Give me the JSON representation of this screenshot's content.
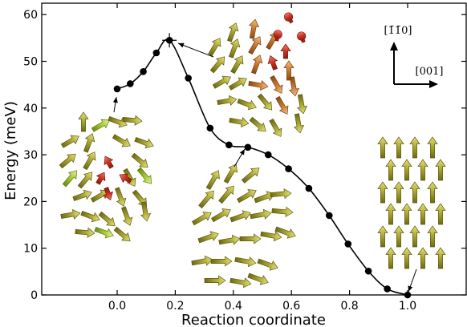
{
  "chart_data": {
    "type": "line",
    "title": "",
    "xlabel": "Reaction coordinate",
    "ylabel": "Energy (meV)",
    "xlim": [
      -0.25,
      1.2
    ],
    "ylim": [
      0,
      63
    ],
    "xticks": [
      0.0,
      0.2,
      0.4,
      0.6,
      0.8,
      1.0
    ],
    "xtick_labels": [
      "0.0",
      "0.2",
      "0.4",
      "0.6",
      "0.8",
      "1.0"
    ],
    "yticks": [
      0,
      10,
      20,
      30,
      40,
      50,
      60
    ],
    "ytick_labels": [
      "0",
      "10",
      "20",
      "30",
      "40",
      "50",
      "60"
    ],
    "grid": false,
    "series": [
      {
        "x": [
          0.0,
          0.045,
          0.09,
          0.135,
          0.18,
          0.245,
          0.32,
          0.385,
          0.45,
          0.52,
          0.59,
          0.66,
          0.73,
          0.795,
          0.865,
          0.93,
          1.0
        ],
        "values": [
          44.1,
          45.2,
          47.8,
          51.8,
          54.5,
          46.4,
          35.7,
          32.1,
          31.6,
          30.0,
          27.0,
          22.8,
          17.0,
          10.9,
          5.1,
          1.3,
          0.0
        ],
        "color": "#000000"
      }
    ],
    "highlight_point": {
      "x": 0.18,
      "y": 54.5
    },
    "annotations": {
      "direction_up": "[1̄1̄0]",
      "direction_right": "[001]"
    }
  },
  "colors": {
    "arrow_olive": "#9a9a2a",
    "arrow_green": "#a8c830",
    "arrow_red": "#c83020",
    "arrow_orange": "#c87830"
  }
}
